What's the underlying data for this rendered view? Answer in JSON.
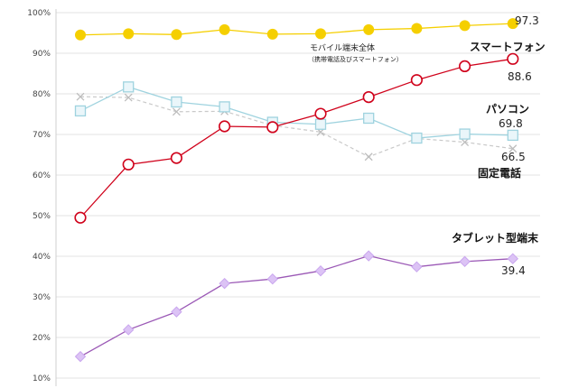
{
  "chart_data": {
    "type": "line",
    "x": [
      "1",
      "2",
      "3",
      "4",
      "5",
      "6",
      "7",
      "8",
      "9",
      "10"
    ],
    "yticks": [
      "10%",
      "20%",
      "30%",
      "40%",
      "50%",
      "60%",
      "70%",
      "80%",
      "90%",
      "100%"
    ],
    "ylim": [
      8,
      100
    ],
    "grid": true,
    "series": [
      {
        "name": "モバイル端末全体",
        "note": "（携帯電話及びスマートフォン）",
        "color": "#f5cf00",
        "marker": "circle-filled",
        "values": [
          94.5,
          94.8,
          94.6,
          95.8,
          94.7,
          94.8,
          95.8,
          96.1,
          96.8,
          97.3
        ],
        "end_label": "97.3"
      },
      {
        "name": "スマートフォン",
        "color": "#d0021b",
        "marker": "circle-open",
        "values": [
          49.5,
          62.6,
          64.2,
          72.0,
          71.8,
          75.1,
          79.2,
          83.4,
          86.8,
          88.6
        ],
        "end_label": "88.6"
      },
      {
        "name": "パソコン",
        "color": "#9fd3df",
        "marker": "square-open",
        "values": [
          75.8,
          81.7,
          78.0,
          76.8,
          73.0,
          72.5,
          74.0,
          69.1,
          70.1,
          69.8
        ],
        "end_label": "69.8"
      },
      {
        "name": "固定電話",
        "color": "#c9c9c9",
        "marker": "x",
        "dashed": true,
        "values": [
          79.3,
          79.1,
          75.6,
          75.7,
          72.2,
          70.6,
          64.5,
          69.0,
          68.1,
          66.5
        ],
        "end_label": "66.5"
      },
      {
        "name": "タブレット型端末",
        "color": "#9b59b6",
        "marker": "diamond",
        "values": [
          15.3,
          21.9,
          26.3,
          33.3,
          34.4,
          36.4,
          40.1,
          37.4,
          38.7,
          39.4
        ],
        "end_label": "39.4"
      }
    ]
  }
}
